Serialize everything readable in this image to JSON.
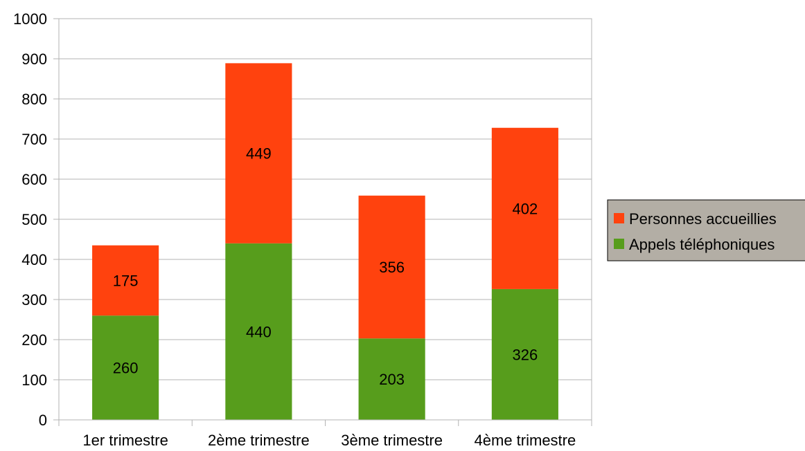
{
  "chart_data": {
    "type": "bar",
    "stacked": true,
    "title": "",
    "xlabel": "",
    "ylabel": "",
    "categories": [
      "1er trimestre",
      "2ème trimestre",
      "3ème trimestre",
      "4ème trimestre"
    ],
    "series": [
      {
        "name": "Appels téléphoniques",
        "color": "#579d1c",
        "values": [
          260,
          440,
          203,
          326
        ]
      },
      {
        "name": "Personnes accueillies",
        "color": "#ff420e",
        "values": [
          175,
          449,
          356,
          402
        ]
      }
    ],
    "ylim": [
      0,
      1000
    ],
    "yticks": [
      0,
      100,
      200,
      300,
      400,
      500,
      600,
      700,
      800,
      900,
      1000
    ],
    "grid": true,
    "legend": {
      "position": "right",
      "order": [
        "Personnes accueillies",
        "Appels téléphoniques"
      ],
      "background": "#b3aea5"
    },
    "data_labels": true
  }
}
